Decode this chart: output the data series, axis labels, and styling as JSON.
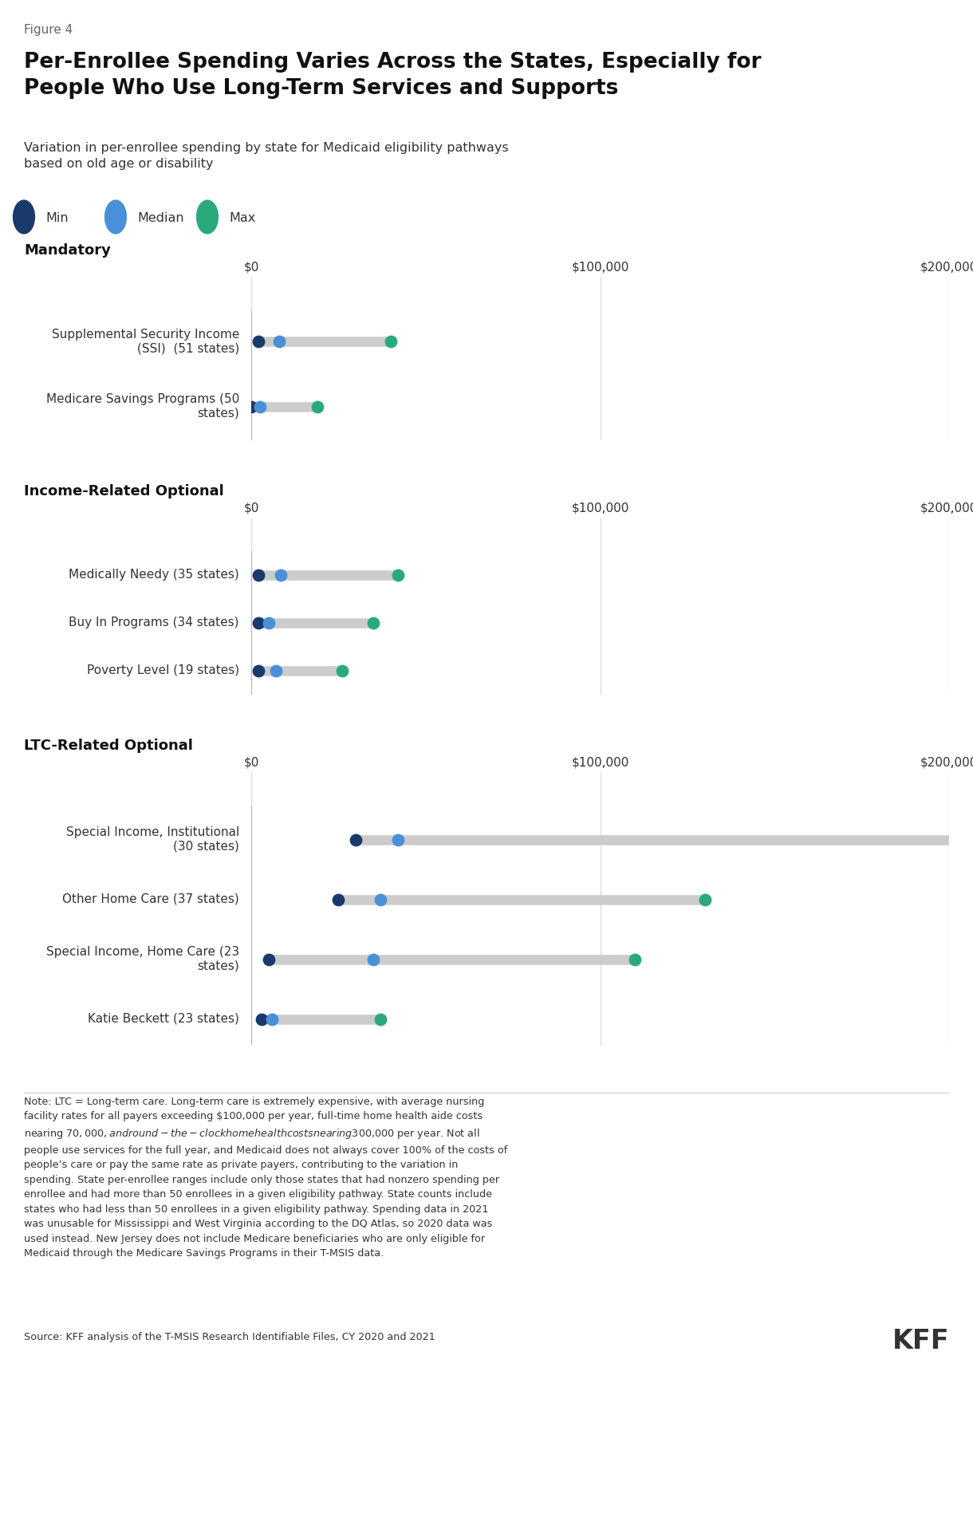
{
  "figure_label": "Figure 4",
  "title": "Per-Enrollee Spending Varies Across the States, Especially for\nPeople Who Use Long-Term Services and Supports",
  "subtitle": "Variation in per-enrollee spending by state for Medicaid eligibility pathways\nbased on old age or disability",
  "legend": {
    "min_label": "Min",
    "median_label": "Median",
    "max_label": "Max",
    "min_color": "#1a3a6b",
    "median_color": "#4a90d9",
    "max_color": "#2aaa7a"
  },
  "sections": [
    {
      "name": "Mandatory",
      "rows": [
        {
          "label": "Supplemental Security Income\n(SSI)  (51 states)",
          "label_italic_part": "(51 states)",
          "min": 2000,
          "median": 8000,
          "max": 40000
        },
        {
          "label": "Medicare Savings Programs (50\nstates)",
          "label_italic_part": "(50 states)",
          "min": 0,
          "median": 2500,
          "max": 19000
        }
      ],
      "xlim": [
        0,
        200000
      ],
      "xticks": [
        0,
        100000,
        200000
      ],
      "xtick_labels": [
        "$0",
        "$100,000",
        "$200,000"
      ]
    },
    {
      "name": "Income-Related Optional",
      "rows": [
        {
          "label": "Medically Needy (35 states)",
          "min": 2000,
          "median": 8500,
          "max": 42000
        },
        {
          "label": "Buy In Programs (34 states)",
          "min": 2000,
          "median": 5000,
          "max": 35000
        },
        {
          "label": "Poverty Level (19 states)",
          "min": 2000,
          "median": 7000,
          "max": 26000
        }
      ],
      "xlim": [
        0,
        200000
      ],
      "xticks": [
        0,
        100000,
        200000
      ],
      "xtick_labels": [
        "$0",
        "$100,000",
        "$200,000"
      ]
    },
    {
      "name": "LTC-Related Optional",
      "rows": [
        {
          "label": "Special Income, Institutional\n(30 states)",
          "min": 30000,
          "median": 42000,
          "max": 218000
        },
        {
          "label": "Other Home Care (37 states)",
          "min": 25000,
          "median": 37000,
          "max": 130000
        },
        {
          "label": "Special Income, Home Care (23\nstates)",
          "min": 5000,
          "median": 35000,
          "max": 110000
        },
        {
          "label": "Katie Beckett (23 states)",
          "min": 3000,
          "median": 6000,
          "max": 37000
        }
      ],
      "xlim": [
        0,
        200000
      ],
      "xticks": [
        0,
        100000,
        200000
      ],
      "xtick_labels": [
        "$0",
        "$100,000",
        "$200,000"
      ]
    }
  ],
  "note_text": "Note: LTC = Long-term care. Long-term care is extremely expensive, with average nursing\nfacility rates for all payers exceeding $100,000 per year, full-time home health aide costs\nnearing $70,000, and round-the-clock home health costs nearing $300,000 per year. Not all\npeople use services for the full year, and Medicaid does not always cover 100% of the costs of\npeople’s care or pay the same rate as private payers, contributing to the variation in\nspending. State per-enrollee ranges include only those states that had nonzero spending per\nenrollee and had more than 50 enrollees in a given eligibility pathway. State counts include\nstates who had less than 50 enrollees in a given eligibility pathway. Spending data in 2021\nwas unusable for Mississippi and West Virginia according to the DQ Atlas, so 2020 data was\nused instead. New Jersey does not include Medicare beneficiaries who are only eligible for\nMedicaid through the Medicare Savings Programs in their T-MSIS data.",
  "source_text": "Source: KFF analysis of the T-MSIS Research Identifiable Files, CY 2020 and 2021",
  "kff_logo": "KFF",
  "background_color": "#ffffff",
  "text_color": "#333333",
  "min_color": "#1a3a6b",
  "median_color": "#4a90d9",
  "max_color": "#2aaa7a",
  "line_color": "#cccccc",
  "grid_color": "#dddddd"
}
